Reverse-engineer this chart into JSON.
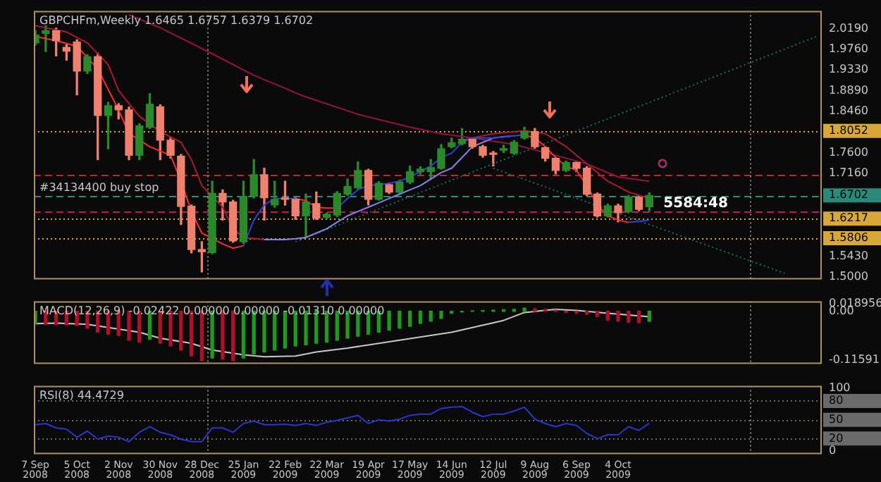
{
  "chart_data": [
    {
      "type": "candlestick",
      "title": "GBPCHFm,Weekly 1.6465 1.6757 1.6379 1.6702",
      "x": [
        "2008-09-07",
        "2008-09-14",
        "2008-09-21",
        "2008-09-28",
        "2008-10-05",
        "2008-10-12",
        "2008-10-19",
        "2008-10-26",
        "2008-11-02",
        "2008-11-09",
        "2008-11-16",
        "2008-11-23",
        "2008-11-30",
        "2008-12-07",
        "2008-12-14",
        "2008-12-21",
        "2008-12-28",
        "2009-01-04",
        "2009-01-11",
        "2009-01-18",
        "2009-01-25",
        "2009-02-01",
        "2009-02-08",
        "2009-02-15",
        "2009-02-22",
        "2009-03-01",
        "2009-03-08",
        "2009-03-15",
        "2009-03-22",
        "2009-03-29",
        "2009-04-05",
        "2009-04-12",
        "2009-04-19",
        "2009-04-26",
        "2009-05-03",
        "2009-05-10",
        "2009-05-17",
        "2009-05-24",
        "2009-05-31",
        "2009-06-07",
        "2009-06-14",
        "2009-06-21",
        "2009-06-28",
        "2009-07-05",
        "2009-07-12",
        "2009-07-19",
        "2009-07-26",
        "2009-08-02",
        "2009-08-09",
        "2009-08-16",
        "2009-08-23",
        "2009-08-30",
        "2009-09-06",
        "2009-09-13",
        "2009-09-20",
        "2009-09-27",
        "2009-10-04",
        "2009-10-11",
        "2009-10-18",
        "2009-10-25"
      ],
      "ohlc": [
        [
          1.9893,
          2.015,
          1.985,
          2.0055
        ],
        [
          2.0091,
          2.0254,
          1.9712,
          2.0146
        ],
        [
          2.0146,
          2.02,
          1.9621,
          1.9938
        ],
        [
          1.98,
          1.985,
          1.9531,
          1.972
        ],
        [
          1.9911,
          1.996,
          1.8807,
          1.9305
        ],
        [
          1.9305,
          1.965,
          1.925,
          1.9603
        ],
        [
          1.9603,
          1.968,
          1.7451,
          1.8373
        ],
        [
          1.8373,
          1.865,
          1.7677,
          1.8581
        ],
        [
          1.8581,
          1.862,
          1.83,
          1.8491
        ],
        [
          1.8491,
          1.855,
          1.7451,
          1.7541
        ],
        [
          1.7541,
          1.82,
          1.745,
          1.8156
        ],
        [
          1.8129,
          1.883,
          1.81,
          1.8608
        ],
        [
          1.8554,
          1.86,
          1.7451,
          1.7858
        ],
        [
          1.7858,
          1.79,
          1.748,
          1.7541
        ],
        [
          1.7523,
          1.756,
          1.6094,
          1.6474
        ],
        [
          1.6474,
          1.65,
          1.55,
          1.557
        ],
        [
          1.557,
          1.5733,
          1.51,
          1.5525
        ],
        [
          1.5507,
          1.6999,
          1.548,
          1.6746
        ],
        [
          1.6746,
          1.6818,
          1.6185,
          1.6565
        ],
        [
          1.6565,
          1.66,
          1.572,
          1.5751
        ],
        [
          1.5733,
          1.6999,
          1.57,
          1.6682
        ],
        [
          1.6682,
          1.7451,
          1.665,
          1.7135
        ],
        [
          1.7135,
          1.727,
          1.6185,
          1.6655
        ],
        [
          1.6501,
          1.6999,
          1.6456,
          1.6619
        ],
        [
          1.6637,
          1.6999,
          1.65,
          1.662
        ],
        [
          1.6619,
          1.665,
          1.62,
          1.6275
        ],
        [
          1.6275,
          1.673,
          1.5823,
          1.6565
        ],
        [
          1.6529,
          1.6773,
          1.62,
          1.623
        ],
        [
          1.624,
          1.633,
          1.622,
          1.631
        ],
        [
          1.6293,
          1.678,
          1.626,
          1.6746
        ],
        [
          1.6728,
          1.7044,
          1.67,
          1.689
        ],
        [
          1.6863,
          1.7406,
          1.684,
          1.7225
        ],
        [
          1.7225,
          1.725,
          1.6501,
          1.6619
        ],
        [
          1.6619,
          1.699,
          1.66,
          1.6954
        ],
        [
          1.6926,
          1.696,
          1.674,
          1.6773
        ],
        [
          1.6773,
          1.702,
          1.675,
          1.6981
        ],
        [
          1.6981,
          1.7315,
          1.695,
          1.7198
        ],
        [
          1.7198,
          1.73,
          1.715,
          1.7252
        ],
        [
          1.7198,
          1.7451,
          1.7044,
          1.7288
        ],
        [
          1.727,
          1.7767,
          1.725,
          1.7677
        ],
        [
          1.7722,
          1.79,
          1.77,
          1.7803
        ],
        [
          1.7785,
          1.81,
          1.776,
          1.7876
        ],
        [
          1.7876,
          1.79,
          1.769,
          1.7722
        ],
        [
          1.7722,
          1.775,
          1.75,
          1.7541
        ],
        [
          1.759,
          1.762,
          1.7315,
          1.756
        ],
        [
          1.765,
          1.775,
          1.76,
          1.767
        ],
        [
          1.7586,
          1.785,
          1.756,
          1.7812
        ],
        [
          1.7903,
          1.813,
          1.788,
          1.8039
        ],
        [
          1.8039,
          1.81,
          1.769,
          1.7722
        ],
        [
          1.7704,
          1.772,
          1.742,
          1.7478
        ],
        [
          1.7478,
          1.75,
          1.715,
          1.7225
        ],
        [
          1.7225,
          1.742,
          1.72,
          1.7388
        ],
        [
          1.7388,
          1.74,
          1.72,
          1.727
        ],
        [
          1.727,
          1.73,
          1.67,
          1.6728
        ],
        [
          1.6728,
          1.675,
          1.625,
          1.6275
        ],
        [
          1.6275,
          1.652,
          1.625,
          1.6483
        ],
        [
          1.6483,
          1.652,
          1.615,
          1.634
        ],
        [
          1.6366,
          1.67,
          1.634,
          1.6664
        ],
        [
          1.6664,
          1.669,
          1.638,
          1.6411
        ],
        [
          1.6465,
          1.6757,
          1.6379,
          1.6702
        ]
      ],
      "colors": [
        "#2a8a2a",
        "#2a8a2a",
        "#f0806e",
        "#f0806e",
        "#f0806e",
        "#2a8a2a",
        "#f0806e",
        "#2a8a2a",
        "#f0806e",
        "#f0806e",
        "#2a8a2a",
        "#2a8a2a",
        "#f0806e",
        "#f0806e",
        "#f0806e",
        "#f0806e",
        "#f0806e",
        "#2a8a2a",
        "#f0806e",
        "#f0806e",
        "#2a8a2a",
        "#2a8a2a",
        "#f0806e",
        "#2a8a2a",
        "#f0806e",
        "#f0806e",
        "#2a8a2a",
        "#f0806e",
        "#2a8a2a",
        "#2a8a2a",
        "#2a8a2a",
        "#2a8a2a",
        "#f0806e",
        "#2a8a2a",
        "#f0806e",
        "#2a8a2a",
        "#2a8a2a",
        "#2a8a2a",
        "#2a8a2a",
        "#2a8a2a",
        "#2a8a2a",
        "#2a8a2a",
        "#f0806e",
        "#f0806e",
        "#f0806e",
        "#2a8a2a",
        "#2a8a2a",
        "#2a8a2a",
        "#f0806e",
        "#f0806e",
        "#f0806e",
        "#2a8a2a",
        "#f0806e",
        "#f0806e",
        "#f0806e",
        "#2a8a2a",
        "#f0806e",
        "#2a8a2a",
        "#f0806e",
        "#2a8a2a"
      ],
      "series": [
        {
          "type": "line",
          "color": "#ff2a2a",
          "x": [
            "2008-09-07",
            "2008-09-21",
            "2008-10-05",
            "2008-10-19",
            "2008-11-02",
            "2008-11-09",
            "2008-11-23",
            "2008-12-07",
            "2008-12-14",
            "2008-12-21",
            "2008-12-28",
            "2009-01-11",
            "2009-01-18",
            "2009-01-25"
          ],
          "values": [
            2.0027,
            1.9938,
            1.9821,
            1.9349,
            1.849,
            1.8,
            1.7721,
            1.7542,
            1.6999,
            1.6367,
            1.5914,
            1.5687,
            1.5597,
            1.565
          ]
        },
        {
          "type": "line",
          "color": "#3040e0",
          "x": [
            "2009-01-25",
            "2009-02-01",
            "2009-02-08",
            "2009-02-15",
            "2009-02-22",
            "2009-03-01"
          ],
          "values": [
            1.565,
            1.6185,
            1.6501,
            1.6637,
            1.6637,
            1.6637
          ]
        },
        {
          "type": "line",
          "color": "#ff2a2a",
          "x": [
            "2009-03-01",
            "2009-03-08",
            "2009-03-15",
            "2009-03-22",
            "2009-03-29"
          ],
          "values": [
            1.6637,
            1.6592,
            1.6456,
            1.6438,
            1.6438
          ]
        },
        {
          "type": "line",
          "color": "#3040e0",
          "x": [
            "2009-03-29",
            "2009-04-05",
            "2009-04-12",
            "2009-04-19",
            "2009-04-26",
            "2009-05-03",
            "2009-05-10",
            "2009-05-17",
            "2009-05-24",
            "2009-05-31",
            "2009-06-07",
            "2009-06-14",
            "2009-06-21",
            "2009-06-28",
            "2009-07-05",
            "2009-07-12",
            "2009-07-19",
            "2009-07-26",
            "2009-08-02"
          ],
          "values": [
            1.6438,
            1.6637,
            1.6818,
            1.6909,
            1.6926,
            1.6954,
            1.6999,
            1.7089,
            1.7198,
            1.7315,
            1.7496,
            1.7586,
            1.7812,
            1.7903,
            1.7903,
            1.7903,
            1.7921,
            1.7948,
            1.7966
          ]
        },
        {
          "type": "line",
          "color": "#ff2a2a",
          "x": [
            "2009-08-02",
            "2009-08-09",
            "2009-08-16",
            "2009-08-23",
            "2009-08-30",
            "2009-09-06",
            "2009-09-13",
            "2009-09-20",
            "2009-09-27",
            "2009-10-04",
            "2009-10-11"
          ],
          "values": [
            1.7966,
            1.7903,
            1.7722,
            1.7496,
            1.7315,
            1.7225,
            1.6908,
            1.6501,
            1.6275,
            1.6185,
            1.614
          ]
        },
        {
          "type": "line",
          "color": "#3040e0",
          "x": [
            "2009-10-11",
            "2009-10-18",
            "2009-10-25"
          ],
          "values": [
            1.614,
            1.6158,
            1.6185
          ]
        },
        {
          "type": "line",
          "color": "#8a80f0",
          "x": [
            "2009-02-08",
            "2009-02-15",
            "2009-02-22",
            "2009-03-01",
            "2009-03-08",
            "2009-03-15",
            "2009-03-22",
            "2009-03-29",
            "2009-04-05",
            "2009-04-12",
            "2009-04-19",
            "2009-04-26",
            "2009-05-03",
            "2009-05-10",
            "2009-05-17",
            "2009-05-24",
            "2009-05-31",
            "2009-06-07",
            "2009-06-14",
            "2009-06-21",
            "2009-06-28",
            "2009-07-05",
            "2009-07-12",
            "2009-07-19",
            "2009-07-26"
          ],
          "values": [
            1.5778,
            1.5778,
            1.5778,
            1.5796,
            1.5823,
            1.5914,
            1.6004,
            1.614,
            1.6275,
            1.6366,
            1.6456,
            1.6547,
            1.6637,
            1.6728,
            1.6818,
            1.6908,
            1.7044,
            1.718,
            1.727,
            1.7496,
            1.7722,
            1.7812,
            1.7903,
            1.793,
            1.7948
          ]
        },
        {
          "type": "line",
          "color": "#b01830",
          "x": [
            "2008-09-07",
            "2008-09-28",
            "2008-10-12",
            "2008-10-26",
            "2008-11-02",
            "2008-11-16",
            "2008-11-30",
            "2008-12-14",
            "2008-12-21",
            "2008-12-28",
            "2009-01-11",
            "2009-01-18",
            "2009-01-25",
            "2009-02-08"
          ],
          "values": [
            2.0254,
            2.012,
            1.9893,
            1.944,
            1.8898,
            1.8355,
            1.8039,
            1.7812,
            1.7451,
            1.6908,
            1.6456,
            1.6004,
            1.5823,
            1.5778
          ]
        },
        {
          "type": "line",
          "color": "#b01830",
          "x": [
            "2009-06-21",
            "2009-07-12",
            "2009-08-02",
            "2009-08-16",
            "2009-08-30",
            "2009-09-13",
            "2009-09-27",
            "2009-10-11",
            "2009-10-25"
          ],
          "values": [
            1.7858,
            1.7994,
            1.8057,
            1.7994,
            1.7722,
            1.7361,
            1.6999,
            1.6773,
            1.6637
          ]
        },
        {
          "type": "line",
          "color": "#9a1040",
          "x": [
            "2008-11-09",
            "2008-11-30",
            "2009-01-04",
            "2009-02-01",
            "2009-03-08",
            "2009-04-12",
            "2009-05-17",
            "2009-06-07",
            "2009-06-28",
            "2009-07-26",
            "2009-08-23",
            "2009-09-13",
            "2009-10-04",
            "2009-10-25"
          ],
          "values": [
            2.048,
            2.0209,
            1.9666,
            1.9214,
            1.8762,
            1.84,
            1.8129,
            1.7994,
            1.7903,
            1.7767,
            1.7541,
            1.7361,
            1.7089,
            1.6999
          ]
        },
        {
          "type": "line",
          "color": "#1f6f5f",
          "line_style": "dotted",
          "x": [
            "2009-03-01",
            "2010-02-14"
          ],
          "values": [
            1.5733,
            2.002
          ]
        },
        {
          "type": "line",
          "color": "#1f6f5f",
          "line_style": "dotted",
          "x": [
            "2009-07-12",
            "2010-01-24"
          ],
          "values": [
            1.7271,
            1.5073
          ]
        }
      ],
      "xlim": [
        "2008-09-06",
        "2010-02-18"
      ],
      "ylim": [
        1.4946,
        2.056
      ],
      "yticks": [
        {
          "value": 2.019,
          "label": "2.0190"
        },
        {
          "value": 1.976,
          "label": "1.9760"
        },
        {
          "value": 1.933,
          "label": "1.9330"
        },
        {
          "value": 1.889,
          "label": "1.8890"
        },
        {
          "value": 1.846,
          "label": "1.8460"
        },
        {
          "value": 1.8052,
          "label": "1.8052"
        },
        {
          "value": 1.76,
          "label": "1.7600"
        },
        {
          "value": 1.716,
          "label": "1.7160"
        },
        {
          "value": 1.6702,
          "label": "1.6702"
        },
        {
          "value": 1.6217,
          "label": "1.6217"
        },
        {
          "value": 1.5806,
          "label": "1.5806"
        },
        {
          "value": 1.543,
          "label": "1.5430"
        },
        {
          "value": 1.5,
          "label": "1.5000"
        }
      ],
      "ref_lines": [
        {
          "axis": "y",
          "value": 1.8052,
          "color": "#d8a838",
          "line_style": "dotted"
        },
        {
          "axis": "y",
          "value": 1.713,
          "color": "#d02020",
          "line_style": "dashed"
        },
        {
          "axis": "y",
          "value": 1.6702,
          "color": "#2a8a7a",
          "line_style": "dashed",
          "label": "#34134400 buy stop"
        },
        {
          "axis": "y",
          "value": 1.6365,
          "color": "#c02040",
          "line_style": "dashed"
        },
        {
          "axis": "y",
          "value": 1.6217,
          "color": "#d8a838",
          "line_style": "dotted"
        },
        {
          "axis": "y",
          "value": 1.5806,
          "color": "#d8a838",
          "line_style": "dotted"
        },
        {
          "axis": "x",
          "value": "2009-01-01",
          "color": "#8a8a70",
          "line_style": "dotted"
        },
        {
          "axis": "x",
          "value": "2010-01-01",
          "color": "#8a8a70",
          "line_style": "dotted"
        }
      ],
      "annotations": [
        "5584:48"
      ],
      "tick_labels": "y"
    },
    {
      "type": "bar",
      "title": "MACD(12,26,9) -0.02422 0.00000 0.00000 -0.01310 0.00000",
      "x": [
        "2008-09-07",
        "2008-09-14",
        "2008-09-21",
        "2008-09-28",
        "2008-10-05",
        "2008-10-12",
        "2008-10-19",
        "2008-10-26",
        "2008-11-02",
        "2008-11-09",
        "2008-11-16",
        "2008-11-23",
        "2008-11-30",
        "2008-12-07",
        "2008-12-14",
        "2008-12-21",
        "2008-12-28",
        "2009-01-04",
        "2009-01-11",
        "2009-01-18",
        "2009-01-25",
        "2009-02-01",
        "2009-02-08",
        "2009-02-15",
        "2009-02-22",
        "2009-03-01",
        "2009-03-08",
        "2009-03-15",
        "2009-03-22",
        "2009-03-29",
        "2009-04-05",
        "2009-04-12",
        "2009-04-19",
        "2009-04-26",
        "2009-05-03",
        "2009-05-10",
        "2009-05-17",
        "2009-05-24",
        "2009-05-31",
        "2009-06-07",
        "2009-06-14",
        "2009-06-21",
        "2009-06-28",
        "2009-07-05",
        "2009-07-12",
        "2009-07-19",
        "2009-07-26",
        "2009-08-02",
        "2009-08-09",
        "2009-08-16",
        "2009-08-23",
        "2009-08-30",
        "2009-09-06",
        "2009-09-13",
        "2009-09-20",
        "2009-09-27",
        "2009-10-04",
        "2009-10-11",
        "2009-10-18",
        "2009-10-25"
      ],
      "series": [
        {
          "type": "bar",
          "values": [
            -0.0292,
            -0.0311,
            -0.032,
            -0.033,
            -0.034,
            -0.0405,
            -0.0499,
            -0.0547,
            -0.0575,
            -0.0688,
            -0.0735,
            -0.0669,
            -0.0763,
            -0.0829,
            -0.0924,
            -0.1065,
            -0.1178,
            -0.1112,
            -0.114,
            -0.1178,
            -0.1112,
            -0.1018,
            -0.0971,
            -0.0924,
            -0.0876,
            -0.0829,
            -0.0801,
            -0.0763,
            -0.0735,
            -0.0688,
            -0.0641,
            -0.0594,
            -0.0547,
            -0.0499,
            -0.0452,
            -0.0405,
            -0.0358,
            -0.0292,
            -0.0236,
            -0.017,
            -0.005,
            -0.002,
            0.001,
            0.0019,
            0.0028,
            0.0038,
            0.0047,
            0.0075,
            0.0066,
            0.0047,
            0.0028,
            -0.0028,
            -0.0047,
            -0.0075,
            -0.0122,
            -0.0217,
            -0.0236,
            -0.0264,
            -0.0273,
            -0.02422
          ],
          "colors": [
            "#1f9a1f",
            "#b0102a",
            "#b0102a",
            "#b0102a",
            "#b0102a",
            "#b0102a",
            "#b0102a",
            "#b0102a",
            "#b0102a",
            "#b0102a",
            "#b0102a",
            "#1f9a1f",
            "#b0102a",
            "#b0102a",
            "#b0102a",
            "#b0102a",
            "#b0102a",
            "#1f9a1f",
            "#b0102a",
            "#b0102a",
            "#1f9a1f",
            "#1f9a1f",
            "#1f9a1f",
            "#1f9a1f",
            "#1f9a1f",
            "#1f9a1f",
            "#1f9a1f",
            "#1f9a1f",
            "#1f9a1f",
            "#1f9a1f",
            "#1f9a1f",
            "#1f9a1f",
            "#1f9a1f",
            "#1f9a1f",
            "#1f9a1f",
            "#1f9a1f",
            "#1f9a1f",
            "#1f9a1f",
            "#1f9a1f",
            "#1f9a1f",
            "#1f9a1f",
            "#1f9a1f",
            "#1f9a1f",
            "#1f9a1f",
            "#1f9a1f",
            "#1f9a1f",
            "#1f9a1f",
            "#1f9a1f",
            "#b0102a",
            "#b0102a",
            "#b0102a",
            "#b0102a",
            "#b0102a",
            "#b0102a",
            "#b0102a",
            "#b0102a",
            "#b0102a",
            "#b0102a",
            "#b0102a",
            "#1f9a1f"
          ]
        },
        {
          "type": "line",
          "color": "#c8c8c8",
          "x": [
            "2008-09-07",
            "2008-09-21",
            "2008-10-12",
            "2008-10-26",
            "2008-11-16",
            "2008-11-30",
            "2008-12-21",
            "2009-01-04",
            "2009-01-25",
            "2009-02-08",
            "2009-03-01",
            "2009-03-15",
            "2009-04-05",
            "2009-05-10",
            "2009-06-14",
            "2009-07-19",
            "2009-08-02",
            "2009-08-23",
            "2009-09-06",
            "2009-09-27",
            "2009-10-25"
          ],
          "values": [
            -0.0292,
            -0.0283,
            -0.0311,
            -0.0386,
            -0.0499,
            -0.0641,
            -0.0763,
            -0.0924,
            -0.1037,
            -0.1084,
            -0.1065,
            -0.0971,
            -0.0876,
            -0.0688,
            -0.0499,
            -0.0217,
            -0.0028,
            0.0047,
            0.0019,
            -0.0047,
            -0.0131
          ]
        }
      ],
      "xlim": [
        "2008-09-06",
        "2010-02-18"
      ],
      "ylim": [
        -0.1253,
        0.0237
      ],
      "yticks": [
        {
          "value": 0.018956,
          "label": "0.018956"
        },
        {
          "value": 0,
          "label": "0.00"
        },
        {
          "value": -0.11591,
          "label": "-0.11591"
        }
      ],
      "ref_lines": [
        {
          "axis": "x",
          "value": "2009-01-01",
          "color": "#8a8a70",
          "line_style": "dotted"
        },
        {
          "axis": "x",
          "value": "2010-01-01",
          "color": "#8a8a70",
          "line_style": "dotted"
        }
      ],
      "tick_labels": "y"
    },
    {
      "type": "line",
      "title": "RSI(8) 44.4729",
      "x": [
        "2008-09-07",
        "2008-09-14",
        "2008-09-21",
        "2008-09-28",
        "2008-10-05",
        "2008-10-12",
        "2008-10-19",
        "2008-10-26",
        "2008-11-02",
        "2008-11-09",
        "2008-11-16",
        "2008-11-23",
        "2008-11-30",
        "2008-12-07",
        "2008-12-14",
        "2008-12-21",
        "2008-12-28",
        "2009-01-04",
        "2009-01-11",
        "2009-01-18",
        "2009-01-25",
        "2009-02-01",
        "2009-02-08",
        "2009-02-15",
        "2009-02-22",
        "2009-03-01",
        "2009-03-08",
        "2009-03-15",
        "2009-03-22",
        "2009-03-29",
        "2009-04-05",
        "2009-04-12",
        "2009-04-19",
        "2009-04-26",
        "2009-05-03",
        "2009-05-10",
        "2009-05-17",
        "2009-05-24",
        "2009-05-31",
        "2009-06-07",
        "2009-06-14",
        "2009-06-21",
        "2009-06-28",
        "2009-07-05",
        "2009-07-12",
        "2009-07-19",
        "2009-07-26",
        "2009-08-02",
        "2009-08-09",
        "2009-08-16",
        "2009-08-23",
        "2009-08-30",
        "2009-09-06",
        "2009-09-13",
        "2009-09-20",
        "2009-09-27",
        "2009-10-04",
        "2009-10-11",
        "2009-10-18",
        "2009-10-25"
      ],
      "values": [
        42,
        44,
        37,
        35,
        22,
        32,
        19,
        24,
        22,
        15,
        30,
        39,
        30,
        26,
        19,
        15,
        15,
        37,
        37,
        30,
        44,
        48,
        42,
        42,
        43,
        41,
        44,
        41,
        46,
        49,
        53,
        57,
        44,
        50,
        48,
        51,
        57,
        59,
        59,
        68,
        70,
        71,
        62,
        55,
        59,
        59,
        64,
        70,
        51,
        44,
        39,
        44,
        41,
        28,
        20,
        26,
        26,
        39,
        33,
        44.4729
      ],
      "color": "#2a35d0",
      "xlim": [
        "2008-09-06",
        "2010-02-18"
      ],
      "xticks": [
        {
          "value": "2008-09-07",
          "label": "7 Sep 2008"
        },
        {
          "value": "2008-10-05",
          "label": "5 Oct 2008"
        },
        {
          "value": "2008-11-02",
          "label": "2 Nov 2008"
        },
        {
          "value": "2008-11-30",
          "label": "30 Nov 2008"
        },
        {
          "value": "2008-12-28",
          "label": "28 Dec 2008"
        },
        {
          "value": "2009-01-25",
          "label": "25 Jan 2009"
        },
        {
          "value": "2009-02-22",
          "label": "22 Feb 2009"
        },
        {
          "value": "2009-03-22",
          "label": "22 Mar 2009"
        },
        {
          "value": "2009-04-19",
          "label": "19 Apr 2009"
        },
        {
          "value": "2009-05-17",
          "label": "17 May 2009"
        },
        {
          "value": "2009-06-14",
          "label": "14 Jun 2009"
        },
        {
          "value": "2009-07-12",
          "label": "12 Jul 2009"
        },
        {
          "value": "2009-08-09",
          "label": "9 Aug 2009"
        },
        {
          "value": "2009-09-06",
          "label": "6 Sep 2009"
        },
        {
          "value": "2009-10-04",
          "label": "4 Oct 2009"
        }
      ],
      "ylim": [
        -5,
        104
      ],
      "yticks": [
        0,
        20,
        50,
        80,
        100
      ],
      "ref_lines": [
        {
          "axis": "y",
          "value": 80,
          "color": "#6a6a6a",
          "line_style": "dotted"
        },
        {
          "axis": "y",
          "value": 50,
          "color": "#6a6a6a",
          "line_style": "dotted"
        },
        {
          "axis": "y",
          "value": 20,
          "color": "#6a6a6a",
          "line_style": "dotted"
        },
        {
          "axis": "x",
          "value": "2009-01-01",
          "color": "#8a8a70",
          "line_style": "dotted"
        },
        {
          "axis": "x",
          "value": "2010-01-01",
          "color": "#8a8a70",
          "line_style": "dotted"
        }
      ]
    }
  ]
}
